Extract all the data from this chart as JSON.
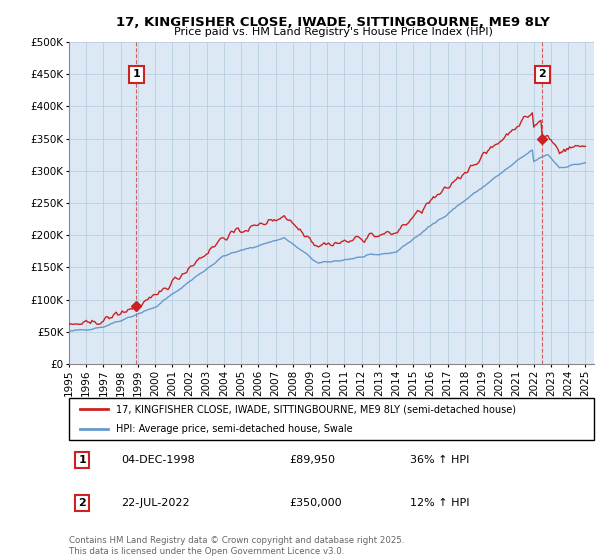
{
  "title": "17, KINGFISHER CLOSE, IWADE, SITTINGBOURNE, ME9 8LY",
  "subtitle": "Price paid vs. HM Land Registry's House Price Index (HPI)",
  "legend_line1": "17, KINGFISHER CLOSE, IWADE, SITTINGBOURNE, ME9 8LY (semi-detached house)",
  "legend_line2": "HPI: Average price, semi-detached house, Swale",
  "table_rows": [
    {
      "num": "1",
      "date": "04-DEC-1998",
      "price": "£89,950",
      "change": "36% ↑ HPI"
    },
    {
      "num": "2",
      "date": "22-JUL-2022",
      "price": "£350,000",
      "change": "12% ↑ HPI"
    }
  ],
  "footnote": "Contains HM Land Registry data © Crown copyright and database right 2025.\nThis data is licensed under the Open Government Licence v3.0.",
  "price_color": "#cc2222",
  "hpi_color": "#6699cc",
  "annotation_color": "#cc2222",
  "ylim": [
    0,
    500000
  ],
  "yticks": [
    0,
    50000,
    100000,
    150000,
    200000,
    250000,
    300000,
    350000,
    400000,
    450000,
    500000
  ],
  "background_color": "#dce9f5",
  "grid_color": "#b8cfe0"
}
